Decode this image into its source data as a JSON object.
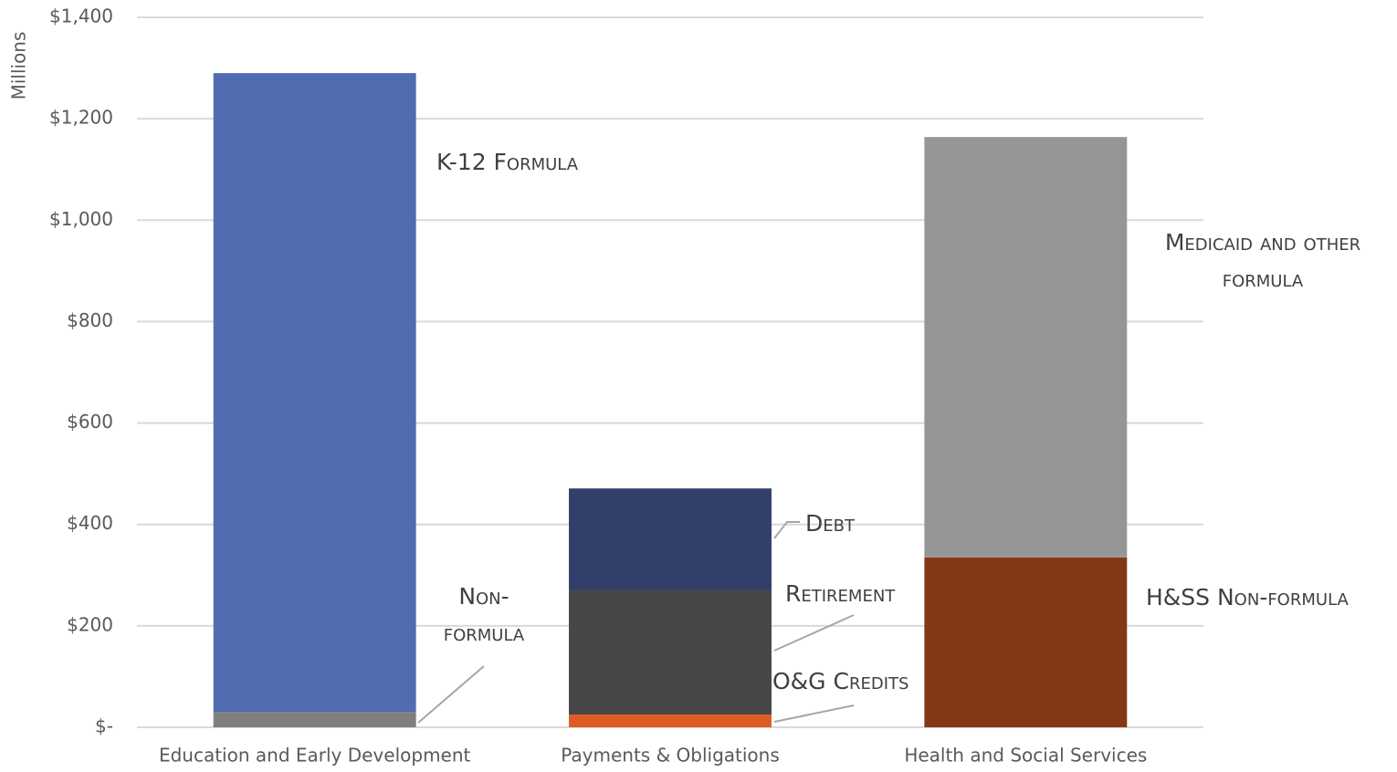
{
  "chart_data": {
    "type": "stacked_bar",
    "y_label": "Millions",
    "categories": [
      "Education and Early Development",
      "Payments & Obligations",
      "Health and Social Services"
    ],
    "series": [
      {
        "name": "Non-formula",
        "color": "#7f7f7f",
        "values": [
          30,
          null,
          null
        ]
      },
      {
        "name": "K-12 Formula",
        "color": "#516cb0",
        "values": [
          1260,
          null,
          null
        ]
      },
      {
        "name": "O&G Credits",
        "color": "#e05a24",
        "values": [
          null,
          25,
          null
        ]
      },
      {
        "name": "Retirement",
        "color": "#474747",
        "values": [
          null,
          245,
          null
        ]
      },
      {
        "name": "Debt",
        "color": "#323f6b",
        "values": [
          null,
          201,
          null
        ]
      },
      {
        "name": "H&SS Non-formula",
        "color": "#843815",
        "values": [
          null,
          null,
          335
        ]
      },
      {
        "name": "Medicaid and other formula",
        "color": "#969696",
        "values": [
          null,
          null,
          829
        ]
      }
    ],
    "ylim": [
      0,
      1400
    ],
    "yticks": [
      {
        "value": 0,
        "label": "$-"
      },
      {
        "value": 200,
        "label": "$200"
      },
      {
        "value": 400,
        "label": "$400"
      },
      {
        "value": 600,
        "label": "$600"
      },
      {
        "value": 800,
        "label": "$800"
      },
      {
        "value": 1000,
        "label": "$1,000"
      },
      {
        "value": 1200,
        "label": "$1,200"
      },
      {
        "value": 1400,
        "label": "$1,400"
      }
    ],
    "grid": true
  }
}
